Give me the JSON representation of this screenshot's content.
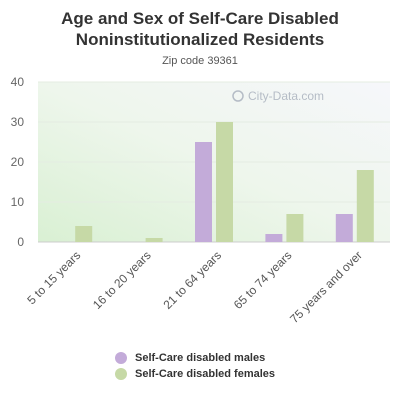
{
  "header": {
    "title_line1": "Age and Sex of Self-Care Disabled",
    "title_line2": "Noninstitutionalized Residents",
    "subtitle": "Zip code 39361"
  },
  "watermark": "City-Data.com",
  "colors": {
    "males": "#c3abd9",
    "females": "#c6d9a6"
  },
  "chart_data": {
    "type": "bar",
    "title": "Age and Sex of Self-Care Disabled Noninstitutionalized Residents",
    "subtitle": "Zip code 39361",
    "categories": [
      "5 to 15 years",
      "16 to 20 years",
      "21 to 64 years",
      "65 to 74 years",
      "75 years and over"
    ],
    "series": [
      {
        "name": "Self-Care disabled males",
        "values": [
          0,
          0,
          25,
          2,
          7
        ]
      },
      {
        "name": "Self-Care disabled females",
        "values": [
          4,
          1,
          30,
          7,
          18
        ]
      }
    ],
    "ylim": [
      0,
      40
    ],
    "yticks": [
      0,
      10,
      20,
      30,
      40
    ],
    "grid": true,
    "legend": "bottom"
  }
}
